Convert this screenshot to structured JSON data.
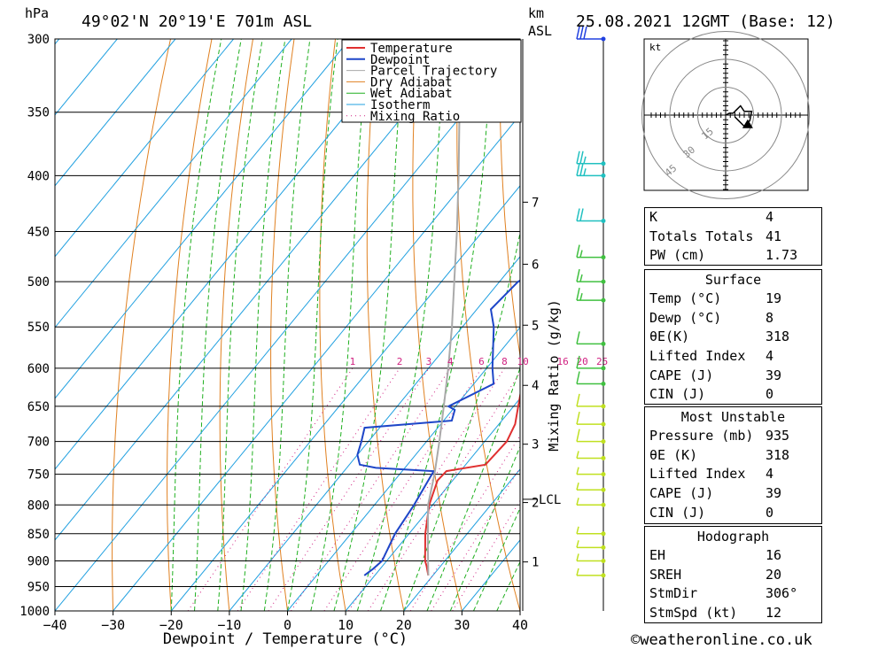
{
  "header": {
    "hpa_label": "hPa",
    "location": "49°02'N  20°19'E  701m  ASL",
    "km_label": "km",
    "asl_label": "ASL",
    "datetime": "25.08.2021  12GMT  (Base: 12)"
  },
  "chart_data": {
    "type": "skew-t",
    "title": "49°02'N 20°19'E 701m ASL",
    "xlabel": "Dewpoint / Temperature (°C)",
    "ylabel_left": "hPa",
    "ylabel_right": "Mixing Ratio (g/kg)",
    "pressure_levels": [
      300,
      350,
      400,
      450,
      500,
      550,
      600,
      650,
      700,
      750,
      800,
      850,
      900,
      950,
      1000
    ],
    "temperature_ticks": [
      -40,
      -30,
      -20,
      -10,
      0,
      10,
      20,
      30,
      40
    ],
    "temperature_tick_labels": [
      "−40",
      "−30",
      "−20",
      "−10",
      "0",
      "10",
      "20",
      "30",
      "40"
    ],
    "km_ticks": [
      {
        "km": 1,
        "p": 902
      },
      {
        "km": 2,
        "p": 796
      },
      {
        "km": 3,
        "p": 704
      },
      {
        "km": 4,
        "p": 622
      },
      {
        "km": 5,
        "p": 548
      },
      {
        "km": 6,
        "p": 482
      },
      {
        "km": 7,
        "p": 423
      }
    ],
    "lcl": {
      "label": "LCL",
      "p": 795
    },
    "mixing_ratio_labels": [
      "1",
      "2",
      "3",
      "4",
      "6",
      "8",
      "10",
      "16",
      "20",
      "25"
    ],
    "mixing_ratio_values": [
      1,
      2,
      3,
      4,
      6,
      8,
      10,
      16,
      20,
      25
    ],
    "legend": [
      "Temperature",
      "Dewpoint",
      "Parcel Trajectory",
      "Dry Adiabat",
      "Wet Adiabat",
      "Isotherm",
      "Mixing Ratio"
    ],
    "series": [
      {
        "name": "Temperature",
        "color": "#e03030",
        "points": [
          [
            928,
            19.2
          ],
          [
            910,
            17.6
          ],
          [
            900,
            16.6
          ],
          [
            850,
            12.8
          ],
          [
            800,
            9.4
          ],
          [
            760,
            7.4
          ],
          [
            745,
            7.6
          ],
          [
            735,
            13.4
          ],
          [
            700,
            13.8
          ],
          [
            675,
            12.8
          ],
          [
            650,
            10.8
          ],
          [
            600,
            6.6
          ],
          [
            550,
            2.6
          ],
          [
            500,
            -2.2
          ],
          [
            480,
            -4.2
          ],
          [
            450,
            -6.0
          ],
          [
            420,
            -8.0
          ],
          [
            400,
            -10.4
          ],
          [
            370,
            -12.6
          ],
          [
            350,
            -14.6
          ],
          [
            300,
            -22.0
          ]
        ]
      },
      {
        "name": "Dewpoint",
        "color": "#1e46c8",
        "points": [
          [
            928,
            8.2
          ],
          [
            915,
            8.8
          ],
          [
            900,
            9.2
          ],
          [
            850,
            7.6
          ],
          [
            800,
            6.8
          ],
          [
            760,
            5.8
          ],
          [
            745,
            5.4
          ],
          [
            740,
            -5.0
          ],
          [
            735,
            -8.2
          ],
          [
            720,
            -10.0
          ],
          [
            700,
            -11.2
          ],
          [
            680,
            -12.6
          ],
          [
            670,
            1.4
          ],
          [
            655,
            0.4
          ],
          [
            650,
            -1.2
          ],
          [
            620,
            3.4
          ],
          [
            600,
            1.0
          ],
          [
            550,
            -4.6
          ],
          [
            530,
            -7.6
          ],
          [
            500,
            -6.8
          ],
          [
            490,
            -5.0
          ],
          [
            470,
            -10.0
          ],
          [
            455,
            -12.0
          ],
          [
            430,
            -16.2
          ],
          [
            400,
            -17.4
          ],
          [
            370,
            -18.4
          ],
          [
            300,
            -23.0
          ]
        ]
      },
      {
        "name": "Parcel Trajectory",
        "color": "#aaaaaa",
        "points": [
          [
            928,
            19.2
          ],
          [
            870,
            14.8
          ],
          [
            800,
            9.2
          ],
          [
            750,
            6.0
          ],
          [
            700,
            2.2
          ],
          [
            650,
            -2.0
          ],
          [
            600,
            -6.6
          ],
          [
            550,
            -11.8
          ],
          [
            500,
            -17.8
          ],
          [
            450,
            -24.4
          ],
          [
            400,
            -32.0
          ],
          [
            350,
            -40.8
          ],
          [
            300,
            -50.6
          ]
        ]
      }
    ],
    "wind_barbs": [
      {
        "p": 928,
        "speed_kt": 5,
        "color": "#c0e020"
      },
      {
        "p": 900,
        "speed_kt": 5,
        "color": "#c0e020"
      },
      {
        "p": 875,
        "speed_kt": 5,
        "color": "#c0e020"
      },
      {
        "p": 850,
        "speed_kt": 5,
        "color": "#c0e020"
      },
      {
        "p": 800,
        "speed_kt": 5,
        "color": "#c0e020"
      },
      {
        "p": 775,
        "speed_kt": 5,
        "color": "#c0e020"
      },
      {
        "p": 750,
        "speed_kt": 5,
        "color": "#c0e020"
      },
      {
        "p": 725,
        "speed_kt": 5,
        "color": "#c0e020"
      },
      {
        "p": 700,
        "speed_kt": 10,
        "color": "#c0e020"
      },
      {
        "p": 675,
        "speed_kt": 10,
        "color": "#c0e020"
      },
      {
        "p": 650,
        "speed_kt": 10,
        "color": "#c0e020"
      },
      {
        "p": 620,
        "speed_kt": 10,
        "color": "#40c040"
      },
      {
        "p": 600,
        "speed_kt": 10,
        "color": "#40c040"
      },
      {
        "p": 570,
        "speed_kt": 10,
        "color": "#40c040"
      },
      {
        "p": 520,
        "speed_kt": 15,
        "color": "#40c040"
      },
      {
        "p": 500,
        "speed_kt": 15,
        "color": "#40c040"
      },
      {
        "p": 475,
        "speed_kt": 15,
        "color": "#40c040"
      },
      {
        "p": 440,
        "speed_kt": 20,
        "color": "#20c0c0"
      },
      {
        "p": 400,
        "speed_kt": 25,
        "color": "#20c0c0"
      },
      {
        "p": 390,
        "speed_kt": 25,
        "color": "#20c0c0"
      },
      {
        "p": 300,
        "speed_kt": 30,
        "color": "#2040e0"
      }
    ]
  },
  "hodograph": {
    "units": "kt",
    "ring_labels": [
      "15",
      "30",
      "45"
    ],
    "ring_values": [
      15,
      30,
      45
    ]
  },
  "indices": {
    "k": {
      "label": "K",
      "value": "4"
    },
    "tt": {
      "label": "Totals Totals",
      "value": "41"
    },
    "pw": {
      "label": "PW (cm)",
      "value": "1.73"
    }
  },
  "surface": {
    "title": "Surface",
    "temp": {
      "label": "Temp (°C)",
      "value": "19"
    },
    "dewp": {
      "label": "Dewp (°C)",
      "value": "8"
    },
    "theta": {
      "label": "θE(K)",
      "value": "318"
    },
    "li": {
      "label": "Lifted Index",
      "value": "4"
    },
    "cape": {
      "label": "CAPE (J)",
      "value": "39"
    },
    "cin": {
      "label": "CIN (J)",
      "value": "0"
    }
  },
  "most_unstable": {
    "title": "Most Unstable",
    "pressure": {
      "label": "Pressure (mb)",
      "value": "935"
    },
    "theta": {
      "label": "θE (K)",
      "value": "318"
    },
    "li": {
      "label": "Lifted Index",
      "value": "4"
    },
    "cape": {
      "label": "CAPE (J)",
      "value": "39"
    },
    "cin": {
      "label": "CIN (J)",
      "value": "0"
    }
  },
  "hodo_stats": {
    "title": "Hodograph",
    "eh": {
      "label": "EH",
      "value": "16"
    },
    "sreh": {
      "label": "SREH",
      "value": "20"
    },
    "stmdir": {
      "label": "StmDir",
      "value": "306°"
    },
    "stmspd": {
      "label": "StmSpd (kt)",
      "value": "12"
    }
  },
  "footer": {
    "copyright": "©weatheronline.co.uk"
  },
  "colors": {
    "temperature": "#e03030",
    "dewpoint": "#1e46c8",
    "parcel": "#aaaaaa",
    "dry_adiabat": "#e08020",
    "wet_adiabat": "#20b020",
    "isotherm": "#20a0e0",
    "mixing_ratio": "#d02080"
  }
}
